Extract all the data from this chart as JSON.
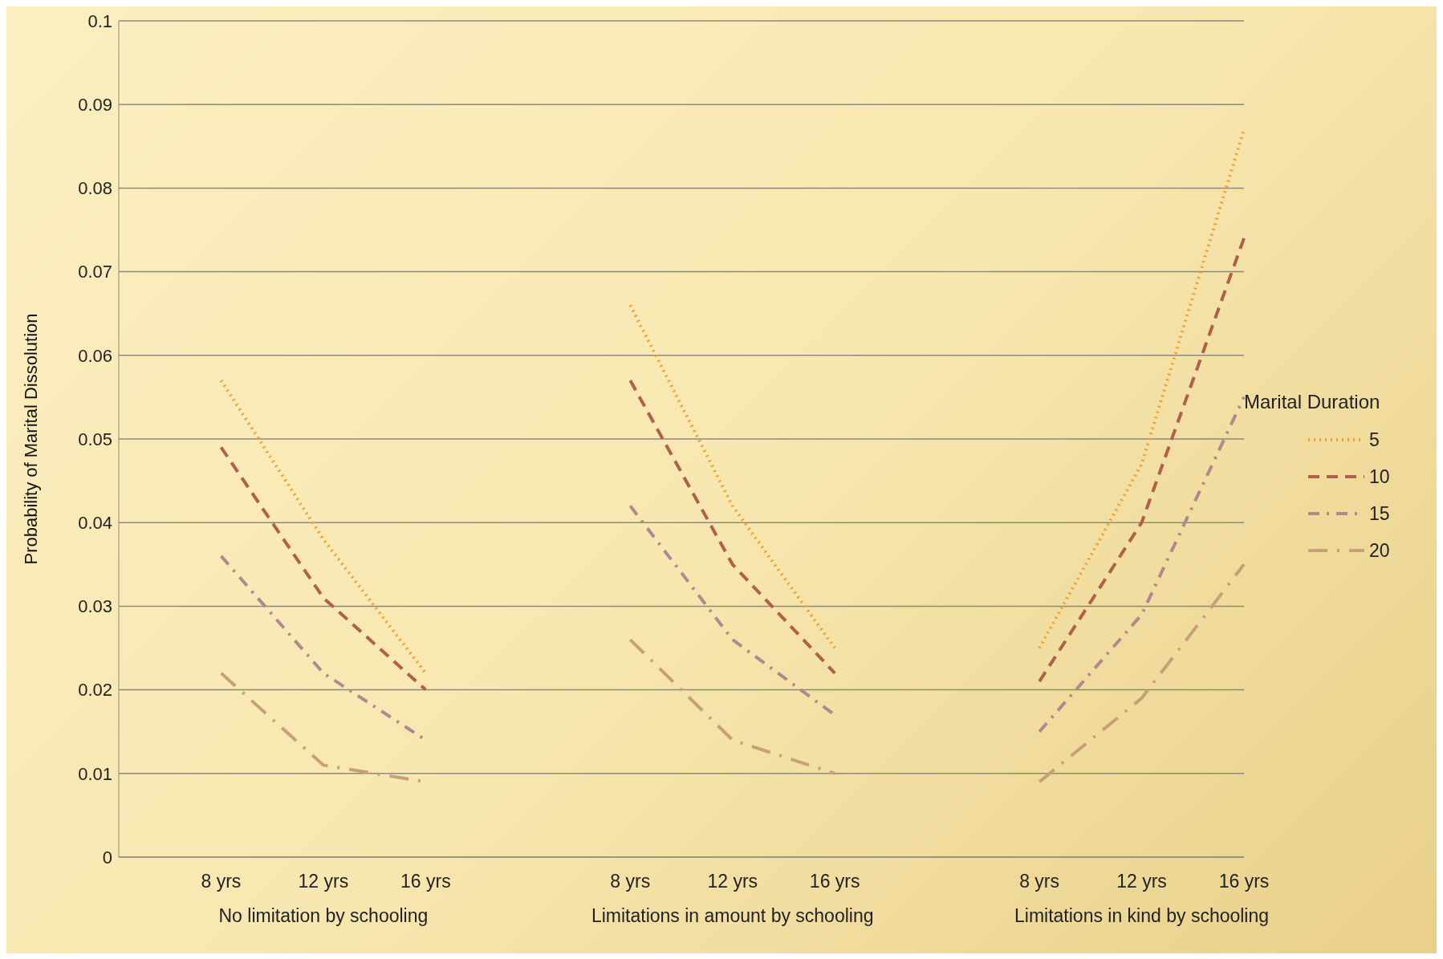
{
  "chart_data": {
    "type": "line",
    "ylabel": "Probability of Marital Dissolution",
    "legend_title": "Marital Duration",
    "categories": [
      null,
      "8 yrs",
      "12 yrs",
      "16 yrs",
      null,
      "8 yrs",
      "12 yrs",
      "16 yrs",
      null,
      "8 yrs",
      "12 yrs",
      "16 yrs"
    ],
    "annotations": [
      "No limitation by schooling",
      "Limitations in amount by schooling",
      "Limitations in kind by schooling"
    ],
    "series": [
      {
        "name": "5",
        "color": "#f0a030",
        "line_style": "dotted",
        "values": [
          null,
          0.057,
          0.038,
          0.022,
          null,
          0.066,
          0.042,
          0.025,
          null,
          0.025,
          0.047,
          0.087
        ]
      },
      {
        "name": "10",
        "color": "#b0604a",
        "line_style": "dashed",
        "values": [
          null,
          0.049,
          0.031,
          0.02,
          null,
          0.057,
          0.035,
          0.022,
          null,
          0.021,
          0.04,
          0.074
        ]
      },
      {
        "name": "15",
        "color": "#b08890",
        "line_style": "dashdot",
        "values": [
          null,
          0.036,
          0.022,
          0.014,
          null,
          0.042,
          0.026,
          0.017,
          null,
          0.015,
          0.029,
          0.055
        ]
      },
      {
        "name": "20",
        "color": "#c8a078",
        "line_style": "longdashdot",
        "values": [
          null,
          0.022,
          0.011,
          0.009,
          null,
          0.026,
          0.014,
          0.01,
          null,
          0.009,
          0.019,
          0.035
        ]
      }
    ],
    "ylim": [
      0,
      0.1
    ],
    "yticks": [
      0,
      0.01,
      0.02,
      0.03,
      0.04,
      0.05,
      0.06,
      0.07,
      0.08,
      0.09,
      0.1
    ],
    "grid": "y",
    "legend": "right",
    "marker": "none"
  }
}
